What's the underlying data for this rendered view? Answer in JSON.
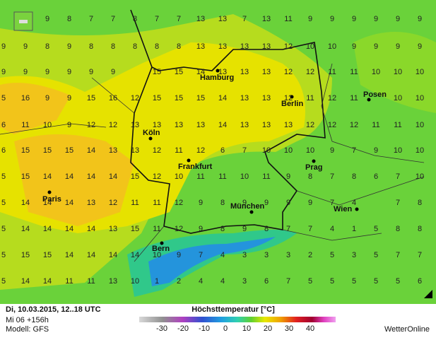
{
  "map": {
    "grid": {
      "rows": [
        [
          null,
          null,
          9,
          8,
          7,
          7,
          8,
          7,
          7,
          13,
          13,
          7,
          13,
          11,
          9,
          9,
          9,
          9,
          9,
          9
        ],
        [
          9,
          9,
          8,
          9,
          8,
          8,
          8,
          8,
          8,
          13,
          13,
          13,
          13,
          12,
          10,
          10,
          9,
          9,
          9,
          9
        ],
        [
          9,
          9,
          9,
          9,
          9,
          9,
          null,
          15,
          15,
          14,
          13,
          13,
          13,
          12,
          12,
          11,
          11,
          10,
          10,
          10
        ],
        [
          5,
          16,
          9,
          9,
          15,
          16,
          12,
          15,
          15,
          15,
          14,
          13,
          13,
          12,
          11,
          12,
          11,
          null,
          10,
          10
        ],
        [
          6,
          11,
          10,
          9,
          12,
          12,
          13,
          13,
          13,
          13,
          14,
          13,
          13,
          13,
          12,
          12,
          12,
          11,
          11,
          10
        ],
        [
          6,
          15,
          15,
          15,
          14,
          13,
          13,
          12,
          11,
          12,
          6,
          7,
          10,
          10,
          10,
          9,
          7,
          9,
          10,
          10
        ],
        [
          5,
          15,
          14,
          14,
          14,
          14,
          15,
          12,
          10,
          11,
          11,
          10,
          11,
          9,
          8,
          7,
          8,
          6,
          7,
          10
        ],
        [
          5,
          14,
          14,
          14,
          13,
          12,
          11,
          11,
          12,
          9,
          8,
          9,
          9,
          9,
          9,
          7,
          4,
          null,
          7,
          8
        ],
        [
          5,
          14,
          14,
          14,
          14,
          13,
          15,
          11,
          12,
          9,
          8,
          9,
          8,
          7,
          7,
          4,
          1,
          5,
          8,
          8
        ],
        [
          5,
          15,
          15,
          14,
          14,
          14,
          14,
          10,
          9,
          7,
          4,
          3,
          3,
          3,
          2,
          5,
          3,
          5,
          7,
          7
        ],
        [
          5,
          14,
          14,
          11,
          11,
          13,
          10,
          1,
          2,
          4,
          4,
          3,
          6,
          7,
          5,
          5,
          5,
          5,
          5,
          6
        ]
      ]
    },
    "cities": [
      "Hamburg",
      "Berlin",
      "Posen",
      "Köln",
      "Frankfurt",
      "Prag",
      "Paris",
      "München",
      "Wien",
      "Bern"
    ]
  },
  "footer": {
    "date": "Di, 10.03.2015, 12..18 UTC",
    "run": "Mi 06 +156h",
    "model": "Modell: GFS",
    "legend_title": "Höchsttemperatur [°C]",
    "legend_ticks": [
      -30,
      -20,
      -10,
      0,
      10,
      20,
      30,
      40
    ],
    "brand": "WetterOnline"
  }
}
